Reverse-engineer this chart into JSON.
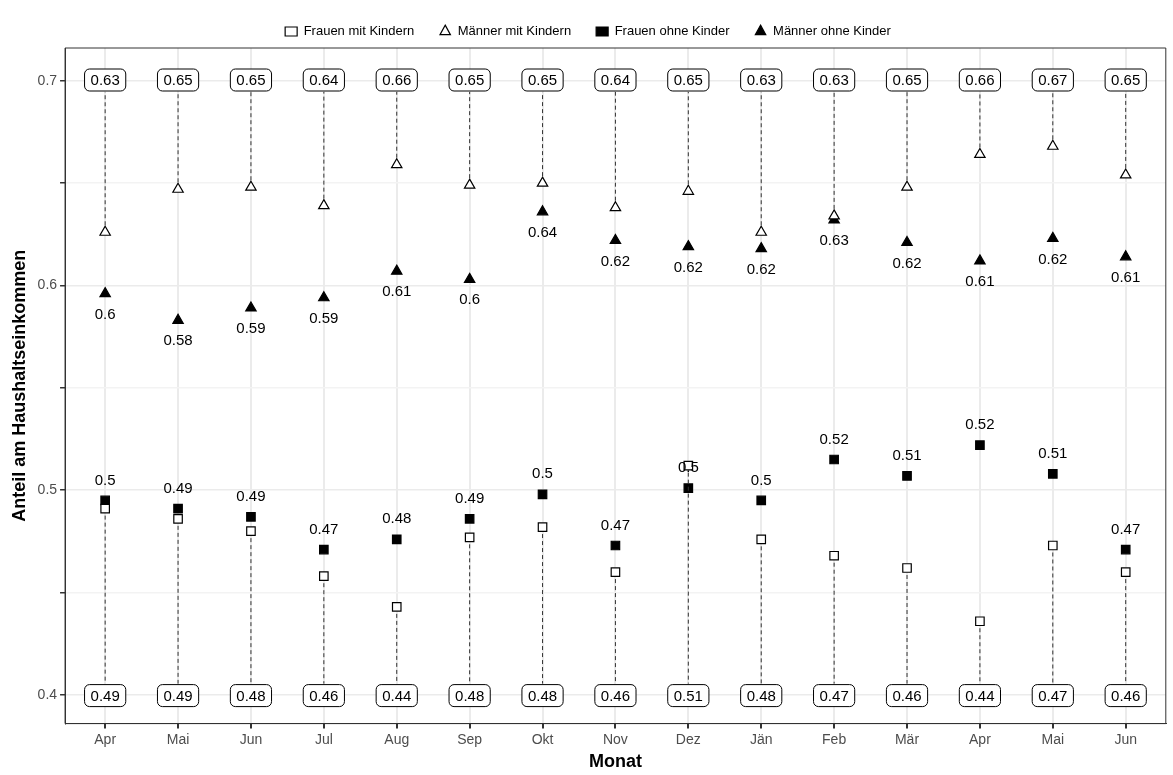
{
  "chart_data": {
    "type": "scatter",
    "xlabel": "Monat",
    "ylabel": "Anteil am Haushaltseinkommen",
    "categories": [
      "Apr",
      "Mai",
      "Jun",
      "Jul",
      "Aug",
      "Sep",
      "Okt",
      "Nov",
      "Dez",
      "Jän",
      "Feb",
      "Mär",
      "Apr",
      "Mai",
      "Jun"
    ],
    "series": [
      {
        "name": "Frauen mit Kindern",
        "color": "#000000",
        "marker": "square",
        "values": [
          0.491,
          0.486,
          0.48,
          0.458,
          0.443,
          0.477,
          0.482,
          0.46,
          0.512,
          0.476,
          0.468,
          0.462,
          0.436,
          0.473,
          0.46
        ],
        "value_labels": [
          "0.49",
          "0.49",
          "0.48",
          "0.46",
          "0.44",
          "0.48",
          "0.48",
          "0.46",
          "0.51",
          "0.48",
          "0.47",
          "0.46",
          "0.44",
          "0.47",
          "0.46"
        ]
      },
      {
        "name": "Männer mit Kindern",
        "color": "#000000",
        "marker": "triangle",
        "values": [
          0.626,
          0.647,
          0.648,
          0.639,
          0.659,
          0.649,
          0.65,
          0.638,
          0.646,
          0.626,
          0.634,
          0.648,
          0.664,
          0.668,
          0.654
        ],
        "value_labels": [
          "0.63",
          "0.65",
          "0.65",
          "0.64",
          "0.66",
          "0.65",
          "0.65",
          "0.64",
          "0.65",
          "0.63",
          "0.63",
          "0.65",
          "0.66",
          "0.67",
          "0.65"
        ]
      },
      {
        "name": "Frauen ohne Kinder",
        "color": "#000000",
        "marker": "square",
        "values": [
          0.495,
          0.491,
          0.487,
          0.471,
          0.476,
          0.486,
          0.498,
          0.473,
          0.501,
          0.495,
          0.515,
          0.507,
          0.522,
          0.508,
          0.471
        ],
        "value_labels": [
          "0.5",
          "0.49",
          "0.49",
          "0.47",
          "0.48",
          "0.49",
          "0.5",
          "0.47",
          "0.5",
          "0.5",
          "0.52",
          "0.51",
          "0.52",
          "0.51",
          "0.47"
        ]
      },
      {
        "name": "Männer ohne Kinder",
        "color": "#000000",
        "marker": "triangle",
        "values": [
          0.596,
          0.583,
          0.589,
          0.594,
          0.607,
          0.603,
          0.636,
          0.622,
          0.619,
          0.618,
          0.632,
          0.621,
          0.612,
          0.623,
          0.614
        ],
        "value_labels": [
          "0.6",
          "0.58",
          "0.59",
          "0.59",
          "0.61",
          "0.6",
          "0.64",
          "0.62",
          "0.62",
          "0.62",
          "0.63",
          "0.62",
          "0.61",
          "0.62",
          "0.61"
        ]
      }
    ],
    "ylim": [
      0.386,
      0.716
    ],
    "yticks": [
      0.4,
      {
        "value": 0.45,
        "label": null
      },
      0.5,
      {
        "value": 0.55,
        "label": null
      },
      0.6,
      {
        "value": 0.65,
        "label": null
      },
      0.7
    ],
    "grid": true,
    "legend": "top"
  }
}
